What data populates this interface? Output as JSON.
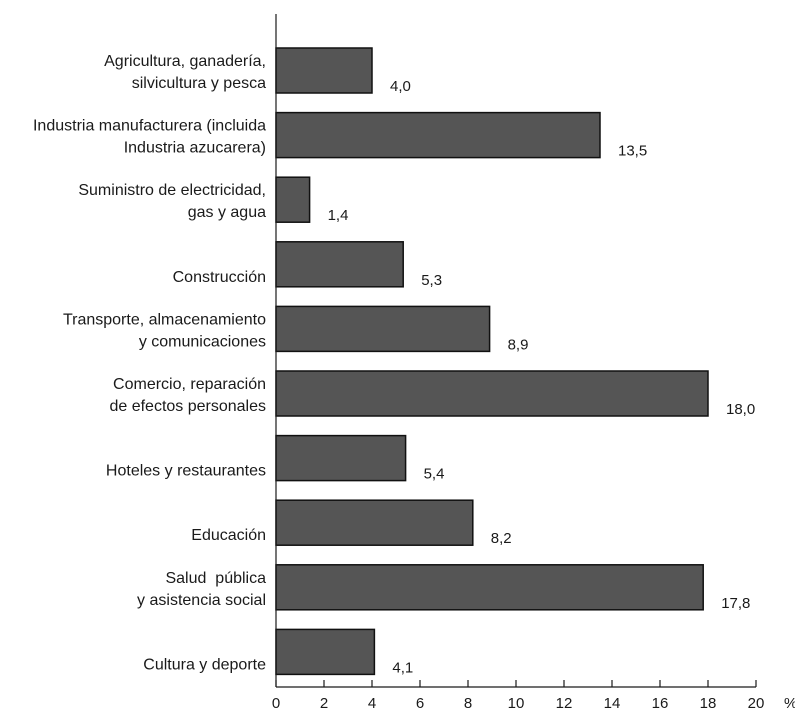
{
  "chart_data": {
    "type": "bar",
    "orientation": "horizontal",
    "categories": [
      [
        "Agricultura, ganadería,",
        "silvicultura y pesca"
      ],
      [
        "Industria manufacturera (incluida",
        "Industria azucarera)"
      ],
      [
        "Suministro de electricidad,",
        "gas y agua"
      ],
      [
        "Construcción"
      ],
      [
        "Transporte, almacenamiento",
        "y comunicaciones"
      ],
      [
        "Comercio, reparación",
        "de efectos personales"
      ],
      [
        "Hoteles y restaurantes"
      ],
      [
        "Educación"
      ],
      [
        "Salud  pública",
        "y asistencia social"
      ],
      [
        "Cultura y deporte"
      ]
    ],
    "values": [
      4.0,
      13.5,
      1.4,
      5.3,
      8.9,
      18.0,
      5.4,
      8.2,
      17.8,
      4.1
    ],
    "value_labels": [
      "4,0",
      "13,5",
      "1,4",
      "5,3",
      "8,9",
      "18,0",
      "5,4",
      "8,2",
      "17,8",
      "4,1"
    ],
    "xlim": [
      0,
      20
    ],
    "xticks": [
      0,
      2,
      4,
      6,
      8,
      10,
      12,
      14,
      16,
      18,
      20
    ],
    "xunit": "%",
    "bar_color": "#555555",
    "grid": false
  }
}
